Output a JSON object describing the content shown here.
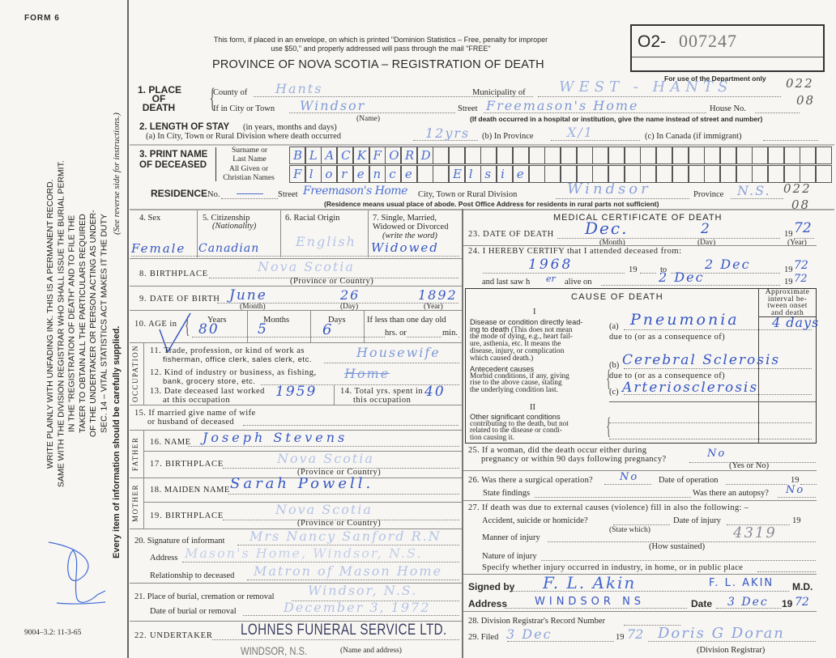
{
  "margin": {
    "form_name": "FORM 6",
    "statute_lines": [
      "SEC. 14 – VITAL STATISTICS ACT MAKES IT THE DUTY",
      "OF THE UNDERTAKER OR PERSON ACTING AS UNDER-",
      "TAKER TO OBTAIN ALL THE PARTICULARS REQUIRED",
      "IN THE \"REGISTRATION OF DEATH\" AND TO FILE THE",
      "SAME WITH THE DIVISION REGISTRAR WHO SHALL ISSUE THE BURIAL PERMIT.",
      "WRITE PLAINLY WITH UNFADING INK. THIS IS A PERMANENT RECORD."
    ],
    "every_item": "Every item of information should be carefully supplied.",
    "see_reverse": "(See reverse side for instructions.)",
    "form_code": "9004–3.2: 11-3-65"
  },
  "header": {
    "notice_1": "This form, if placed in an envelope, on which is printed \"Dominion Statistics – Free, penalty for improper",
    "notice_2": "use $50,\" and properly addressed will pass through the mail \"FREE\"",
    "title": "PROVINCE OF NOVA SCOTIA – REGISTRATION OF DEATH",
    "reg_prefix": "O2-",
    "reg_number": "007247",
    "dept_only": "For use of the Department only",
    "code_1": "022",
    "code_2": "08",
    "code_3": "022",
    "code_4": "08"
  },
  "s1": {
    "label": [
      "1. PLACE",
      "OF",
      "DEATH"
    ],
    "county_label": "County of",
    "county": "Hants",
    "municipality_label": "Municipality of",
    "municipality": "WEST - HANTS",
    "city_label": "If in City or Town",
    "city": "Windsor",
    "name_note": "(Name)",
    "street_label": "Street",
    "street": "Freemason's Home",
    "house_label": "House No.",
    "institution_note": "(If death occurred in a hospital or institution, give the name instead of street and number)"
  },
  "s2": {
    "label": "2. LENGTH OF STAY",
    "label_note": "(in years, months and days)",
    "a_label": "(a) In City, Town or Rural Division where death occurred",
    "a": "12yrs",
    "b_label": "(b) In Province",
    "b": "X/1",
    "c_label": "(c) In Canada (if immigrant)"
  },
  "s3": {
    "label": [
      "3. PRINT NAME",
      "OF DECEASED"
    ],
    "surname_label": [
      "Surname or",
      "Last Name"
    ],
    "given_label": [
      "All Given or",
      "Christian Names"
    ],
    "surname_letters": [
      "B",
      "L",
      "A",
      "C",
      "K",
      "F",
      "O",
      "R",
      "D"
    ],
    "given_letters": [
      "F",
      "l",
      "o",
      "r",
      "e",
      "n",
      "c",
      "e",
      "",
      "",
      "E",
      "l",
      "s",
      "i",
      "e"
    ]
  },
  "residence": {
    "label": "RESIDENCE",
    "no_label": "No.",
    "street_label": "Street",
    "street": "Freemason's Home",
    "city_label": "City, Town or Rural Division",
    "city": "Windsor",
    "province_label": "Province",
    "province": "N.S.",
    "note": "(Residence means usual place of abode. Post Office Address for residents in rural parts not sufficient)"
  },
  "s4": {
    "label": "4. Sex",
    "value": "Female"
  },
  "s5": {
    "label": "5. Citizenship",
    "sub": "(Nationality)",
    "value": "Canadian"
  },
  "s6": {
    "label": "6. Racial Origin",
    "value": "English"
  },
  "s7": {
    "label": [
      "7. Single, Married,",
      "Widowed or Divorced",
      "(write the word)"
    ],
    "value": "Widowed"
  },
  "s8": {
    "label": "8. BIRTHPLACE",
    "value": "Nova Scotia",
    "note": "(Province or Country)"
  },
  "s9": {
    "label": "9. DATE OF BIRTH",
    "month": "June",
    "day": "26",
    "year": "1892",
    "month_label": "(Month)",
    "day_label": "(Day)",
    "year_label": "(Year)"
  },
  "s10": {
    "label": "10. AGE in",
    "years_label": "Years",
    "years": "80",
    "months_label": "Months",
    "months": "5",
    "days_label": "Days",
    "days": "6",
    "infant_label": "If less than one day old",
    "hrs_label": "hrs. or",
    "min_label": "min."
  },
  "occupation": {
    "side_label": "OCCUPATION",
    "s11": [
      "11. Trade, profession, or kind of work as",
      "fisherman, office clerk, sales clerk, etc."
    ],
    "s11_value": "Housewife",
    "s12": [
      "12. Kind of industry or business, as fishing,",
      "bank, grocery store, etc."
    ],
    "s12_value": "Home",
    "s13": [
      "13. Date deceased last worked",
      "at this occupation"
    ],
    "s13_value": "1959",
    "s14": [
      "14. Total yrs. spent in",
      "this occupation"
    ],
    "s14_value": "40"
  },
  "s15": {
    "label": [
      "15. If married give name of wife",
      "or husband of deceased"
    ]
  },
  "father": {
    "side_label": "FATHER",
    "name_label": "16. NAME",
    "name": "Joseph Stevens",
    "birthplace_label": "17. BIRTHPLACE",
    "birthplace": "Nova Scotia",
    "note": "(Province or Country)"
  },
  "mother": {
    "side_label": "MOTHER",
    "maiden_label": "18. MAIDEN NAME",
    "maiden": "Sarah Powell.",
    "birthplace_label": "19. BIRTHPLACE",
    "birthplace": "Nova Scotia",
    "note": "(Province or Country)"
  },
  "s20": {
    "label": "20. Signature of informant",
    "value": "Mrs Nancy Sanford R.N",
    "address_label": "Address",
    "address": "Mason's Home, Windsor, N.S.",
    "relationship_label": "Relationship to deceased",
    "relationship": "Matron of Mason Home"
  },
  "s21": {
    "label": "21. Place of burial, cremation or removal",
    "value": "Windsor, N.S.",
    "date_label": "Date of burial or removal",
    "date": "December 3, 1972"
  },
  "s22": {
    "label": "22. UNDERTAKER",
    "stamp_1": "LOHNES FUNERAL SERVICE LTD.",
    "stamp_2": "WINDSOR, N.S.",
    "note": "(Name and address)"
  },
  "medical": {
    "title": "MEDICAL CERTIFICATE OF DEATH",
    "s23": {
      "label": "23. DATE OF DEATH",
      "month": "Dec.",
      "day": "2",
      "year_prefix": "19",
      "year": "72",
      "month_label": "(Month)",
      "day_label": "(Day)",
      "year_label": "(Year)"
    },
    "s24": {
      "label": "24. I HEREBY CERTIFY that I attended deceased from:",
      "from": "1968",
      "nineteen": "19",
      "to_label": "to",
      "to": "2 Dec",
      "to_year_prefix": "19",
      "to_year": "72",
      "last_saw_label": "and last saw h",
      "last_saw_pronoun": "er",
      "alive_label": "alive on",
      "last_saw": "2 Dec",
      "last_year_prefix": "19",
      "last_year": "72"
    },
    "cause": {
      "title": "CAUSE OF DEATH",
      "roman_1": "I",
      "interval_label": [
        "Approximate",
        "interval be-",
        "tween onset",
        "and death"
      ],
      "direct_label_bold": [
        "Disease or condition directly lead-",
        "ing to death"
      ],
      "direct_label": [
        "(This does not mean",
        "the mode of dying, e.g., heart fail-",
        "ure, asthenia, etc. It means the",
        "disease, injury, or complication",
        "which caused death.)"
      ],
      "a_label": "(a)",
      "a": "Pneumonia",
      "a_interval": "4 days",
      "due_to": "due to (or as a consequence of)",
      "antecedent_bold": "Antecedent causes",
      "antecedent": [
        "Morbid conditions, if any, giving",
        "rise to the above cause, stating",
        "the underlying condition last."
      ],
      "b_label": "(b)",
      "b": "Cerebral Sclerosis",
      "c_label": "(c)",
      "c": "Arteriosclerosis",
      "roman_2": "II",
      "other_bold": "Other significant conditions",
      "other": [
        "contributing to the death, but not",
        "related to the disease or condi-",
        "tion causing it."
      ]
    },
    "s25": {
      "label": [
        "25. If a woman, did the death occur either during",
        "pregnancy or within 90 days following pregnancy?"
      ],
      "value": "No",
      "note": "(Yes or No)"
    },
    "s26": {
      "label": "26. Was there a surgical operation?",
      "value": "No",
      "date_label": "Date of operation",
      "year_prefix": "19",
      "findings_label": "State findings",
      "autopsy_label": "Was there an autopsy?",
      "autopsy": "No"
    },
    "s27": {
      "label": "27. If death was due to external causes (violence) fill in also the following: –",
      "accident_label": "Accident, suicide or homicide?",
      "state_which": "(State which)",
      "date_label": "Date of injury",
      "year_prefix": "19",
      "manner_label": "Manner of injury",
      "manner_code": "4319",
      "how_sustained": "(How sustained)",
      "nature_label": "Nature of injury",
      "specify_label": "Specify whether injury occurred in industry, in home, or in public place"
    },
    "signed": {
      "label": "Signed by",
      "signature": "F. L. Akin",
      "printed": "F. L. AKIN",
      "suffix": "M.D.",
      "address_label": "Address",
      "address": "WINDSOR NS",
      "date_label": "Date",
      "date": "3 Dec",
      "year_prefix": "19",
      "year": "72"
    },
    "s28": {
      "label": "28. Division Registrar's Record Number"
    },
    "s29": {
      "label": "29. Filed",
      "date": "3 Dec",
      "year_prefix": "19",
      "year": "72",
      "registrar": "Doris G Doran",
      "registrar_label": "(Division Registrar)"
    }
  },
  "colors": {
    "ink_dark": "#3557c4",
    "ink_light": "#9cb1df",
    "paper": "#f8f6f2",
    "rule": "#8a8a8a"
  }
}
